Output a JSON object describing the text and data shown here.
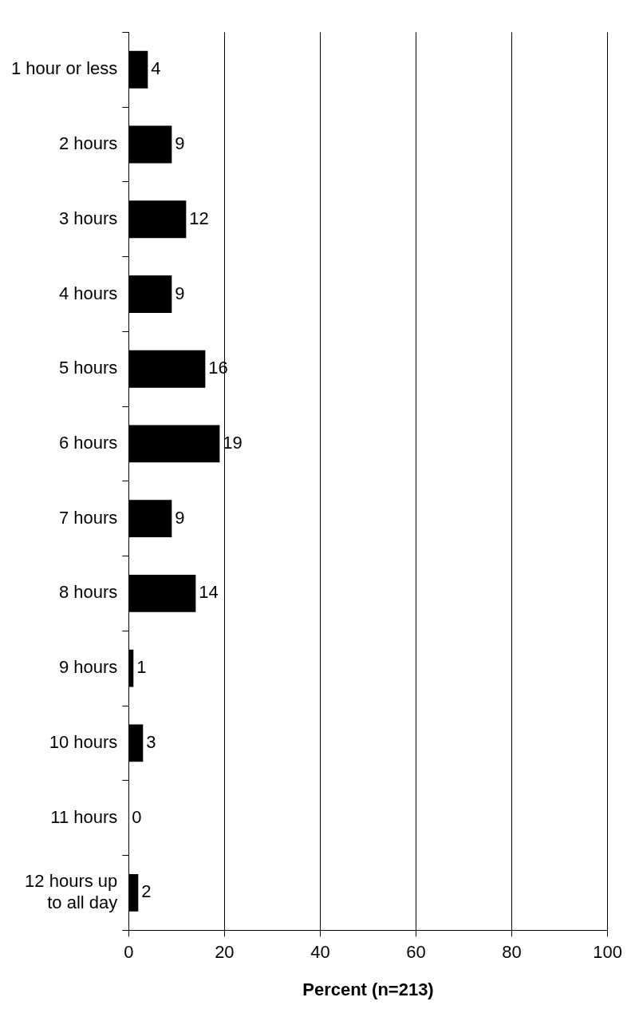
{
  "chart_data": {
    "type": "bar",
    "orientation": "horizontal",
    "categories": [
      "1 hour or less",
      "2 hours",
      "3 hours",
      "4 hours",
      "5 hours",
      "6 hours",
      "7 hours",
      "8 hours",
      "9 hours",
      "10 hours",
      "11 hours",
      "12 hours up to all day"
    ],
    "values": [
      4,
      9,
      12,
      9,
      16,
      19,
      9,
      14,
      1,
      3,
      0,
      2
    ],
    "color": "#000000",
    "xlim": [
      0,
      100
    ],
    "xticks": [
      0,
      20,
      40,
      60,
      80,
      100
    ],
    "xlabel": "Percent (n=213)",
    "grid": "x",
    "data_labels": true,
    "legend": false
  }
}
